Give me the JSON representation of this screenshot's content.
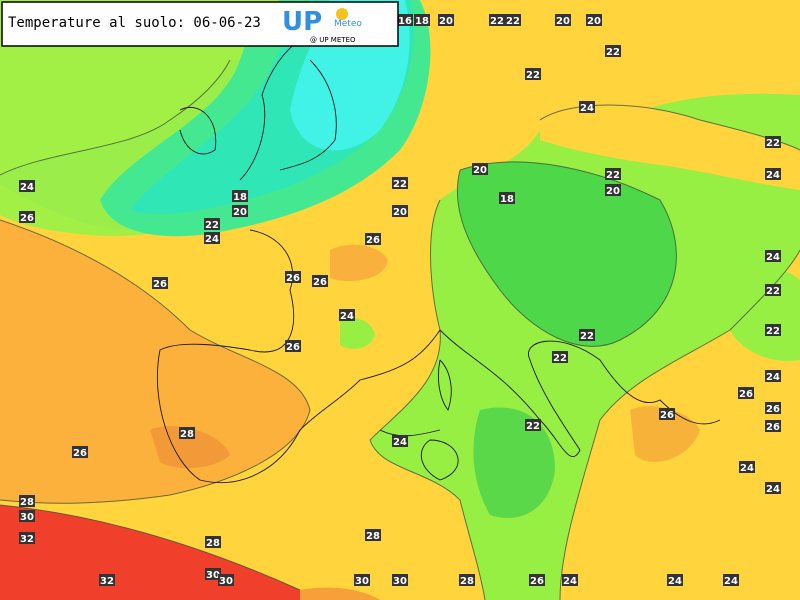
{
  "header": {
    "title": "Temperature al suolo: 06-06-23",
    "logo": "UP",
    "logo_sub": "Meteo",
    "credit": "@ UP METEO"
  },
  "contour_labels": [
    16,
    18,
    20,
    22,
    22,
    20,
    20,
    22,
    22,
    24,
    22,
    24,
    24,
    26,
    18,
    20,
    22,
    24,
    22,
    20,
    20,
    18,
    22,
    20,
    26,
    26,
    26,
    26,
    24,
    26,
    22,
    22,
    24,
    22,
    22,
    24,
    26,
    26,
    26,
    26,
    28,
    24,
    22,
    26,
    24,
    24,
    28,
    30,
    32,
    28,
    28,
    30,
    30,
    32,
    30,
    30,
    28,
    26,
    24,
    24,
    24
  ]
}
